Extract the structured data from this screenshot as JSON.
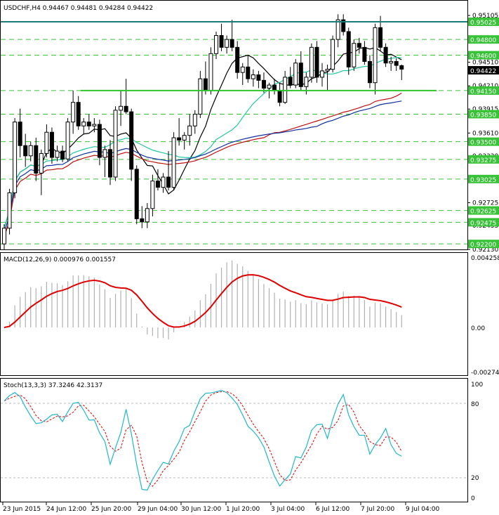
{
  "chart_header": {
    "symbol": "USDCHF,H4",
    "ohlc": "0.94467 0.94481 0.94284 0.94422"
  },
  "colors": {
    "background": "#ffffff",
    "candle": "#000000",
    "level_line": "#38c238",
    "horizontal_teal": "#1a7a7a",
    "support_green": "#2ec42e",
    "ma_black": "#000000",
    "ma_aqua": "#20c8a0",
    "ma_red": "#c01010",
    "ma_blue": "#1030a0",
    "macd_signal": "#e00000",
    "macd_hist": "#b0b0b0",
    "stoch_main": "#20b8c8",
    "stoch_signal": "#e00000"
  },
  "price_axis": {
    "ticks": [
      "0.95105",
      "0.94790",
      "0.94510",
      "0.94210",
      "0.93915",
      "0.93610",
      "0.93320",
      "0.93025",
      "0.92725",
      "0.92435",
      "0.92130"
    ],
    "current_price_tag": "0.94422"
  },
  "levels": {
    "values": [
      "0.95025",
      "0.94800",
      "0.94600",
      "0.94150",
      "0.93850",
      "0.93500",
      "0.93275",
      "0.93025",
      "0.92625",
      "0.92475",
      "0.92200"
    ],
    "teal_level": "0.95025",
    "support_level": "0.94150"
  },
  "macd": {
    "title": "MACD(12,26,9) 0.000976 0.001557",
    "axis": [
      "0.004258",
      "0.00",
      "-0.002745"
    ]
  },
  "stoch": {
    "title": "Stoch(13,3,3) 37.3246 42.3137",
    "axis": [
      "100",
      "80",
      "20",
      "0"
    ]
  },
  "time_axis": {
    "labels": [
      "23 Jun 2015",
      "24 Jun 12:00",
      "25 Jun 20:00",
      "29 Jun 04:00",
      "30 Jun 12:00",
      "1 Jul 20:00",
      "3 Jul 04:00",
      "6 Jul 12:00",
      "7 Jul 20:00",
      "9 Jul 04:00"
    ]
  },
  "chart_data": {
    "type": "candlestick",
    "title": "USDCHF,H4",
    "ylim": [
      0.9213,
      0.9523
    ],
    "candles": [
      {
        "t": "23 Jun 2015 00:00",
        "o": 0.922,
        "h": 0.9245,
        "l": 0.9213,
        "c": 0.924
      },
      {
        "t": "23 Jun 2015 04:00",
        "o": 0.924,
        "h": 0.929,
        "l": 0.9232,
        "c": 0.9285
      },
      {
        "t": "23 Jun 2015 08:00",
        "o": 0.9285,
        "h": 0.938,
        "l": 0.9278,
        "c": 0.9375
      },
      {
        "t": "23 Jun 2015 12:00",
        "o": 0.9375,
        "h": 0.9392,
        "l": 0.933,
        "c": 0.9345
      },
      {
        "t": "23 Jun 2015 16:00",
        "o": 0.9345,
        "h": 0.936,
        "l": 0.9318,
        "c": 0.9332
      },
      {
        "t": "23 Jun 2015 20:00",
        "o": 0.9332,
        "h": 0.935,
        "l": 0.9325,
        "c": 0.9345
      },
      {
        "t": "24 Jun 2015 00:00",
        "o": 0.9345,
        "h": 0.9355,
        "l": 0.93,
        "c": 0.931
      },
      {
        "t": "24 Jun 2015 04:00",
        "o": 0.931,
        "h": 0.934,
        "l": 0.9282,
        "c": 0.9335
      },
      {
        "t": "24 Jun 2015 08:00",
        "o": 0.9335,
        "h": 0.9372,
        "l": 0.933,
        "c": 0.9362
      },
      {
        "t": "24 Jun 2015 12:00",
        "o": 0.9362,
        "h": 0.9368,
        "l": 0.9322,
        "c": 0.933
      },
      {
        "t": "24 Jun 2015 16:00",
        "o": 0.933,
        "h": 0.9345,
        "l": 0.9325,
        "c": 0.9338
      },
      {
        "t": "24 Jun 2015 20:00",
        "o": 0.9338,
        "h": 0.9345,
        "l": 0.9324,
        "c": 0.9328
      },
      {
        "t": "25 Jun 2015 00:00",
        "o": 0.9328,
        "h": 0.938,
        "l": 0.9325,
        "c": 0.9375
      },
      {
        "t": "25 Jun 2015 04:00",
        "o": 0.9375,
        "h": 0.9415,
        "l": 0.936,
        "c": 0.94
      },
      {
        "t": "25 Jun 2015 08:00",
        "o": 0.94,
        "h": 0.9408,
        "l": 0.9365,
        "c": 0.937
      },
      {
        "t": "25 Jun 2015 12:00",
        "o": 0.937,
        "h": 0.938,
        "l": 0.936,
        "c": 0.9375
      },
      {
        "t": "25 Jun 2015 16:00",
        "o": 0.9375,
        "h": 0.9385,
        "l": 0.9365,
        "c": 0.937
      },
      {
        "t": "25 Jun 2015 20:00",
        "o": 0.937,
        "h": 0.938,
        "l": 0.9362,
        "c": 0.9372
      },
      {
        "t": "26 Jun 2015 00:00",
        "o": 0.9372,
        "h": 0.9378,
        "l": 0.932,
        "c": 0.933
      },
      {
        "t": "26 Jun 2015 04:00",
        "o": 0.933,
        "h": 0.9345,
        "l": 0.9305,
        "c": 0.934
      },
      {
        "t": "26 Jun 2015 08:00",
        "o": 0.934,
        "h": 0.9352,
        "l": 0.9295,
        "c": 0.9305
      },
      {
        "t": "26 Jun 2015 12:00",
        "o": 0.9305,
        "h": 0.9395,
        "l": 0.93,
        "c": 0.939
      },
      {
        "t": "26 Jun 2015 16:00",
        "o": 0.939,
        "h": 0.9415,
        "l": 0.937,
        "c": 0.9395
      },
      {
        "t": "26 Jun 2015 20:00",
        "o": 0.9395,
        "h": 0.943,
        "l": 0.9385,
        "c": 0.9388
      },
      {
        "t": "29 Jun 2015 00:00",
        "o": 0.9388,
        "h": 0.9392,
        "l": 0.93,
        "c": 0.9315
      },
      {
        "t": "29 Jun 2015 04:00",
        "o": 0.9315,
        "h": 0.932,
        "l": 0.9245,
        "c": 0.9252
      },
      {
        "t": "29 Jun 2015 08:00",
        "o": 0.9252,
        "h": 0.9268,
        "l": 0.924,
        "c": 0.9248
      },
      {
        "t": "29 Jun 2015 12:00",
        "o": 0.9248,
        "h": 0.9272,
        "l": 0.924,
        "c": 0.9265
      },
      {
        "t": "29 Jun 2015 16:00",
        "o": 0.9265,
        "h": 0.9308,
        "l": 0.9255,
        "c": 0.93
      },
      {
        "t": "29 Jun 2015 20:00",
        "o": 0.93,
        "h": 0.9315,
        "l": 0.9288,
        "c": 0.9292
      },
      {
        "t": "30 Jun 2015 00:00",
        "o": 0.9292,
        "h": 0.931,
        "l": 0.9285,
        "c": 0.9305
      },
      {
        "t": "30 Jun 2015 04:00",
        "o": 0.9305,
        "h": 0.9338,
        "l": 0.9288,
        "c": 0.9292
      },
      {
        "t": "30 Jun 2015 08:00",
        "o": 0.9292,
        "h": 0.9362,
        "l": 0.9288,
        "c": 0.9355
      },
      {
        "t": "30 Jun 2015 12:00",
        "o": 0.9355,
        "h": 0.938,
        "l": 0.9345,
        "c": 0.9352
      },
      {
        "t": "30 Jun 2015 16:00",
        "o": 0.9352,
        "h": 0.9362,
        "l": 0.934,
        "c": 0.9358
      },
      {
        "t": "30 Jun 2015 20:00",
        "o": 0.9358,
        "h": 0.9385,
        "l": 0.9345,
        "c": 0.937
      },
      {
        "t": "1 Jul 2015 00:00",
        "o": 0.937,
        "h": 0.939,
        "l": 0.936,
        "c": 0.9385
      },
      {
        "t": "1 Jul 2015 04:00",
        "o": 0.9385,
        "h": 0.944,
        "l": 0.938,
        "c": 0.943
      },
      {
        "t": "1 Jul 2015 08:00",
        "o": 0.943,
        "h": 0.9452,
        "l": 0.941,
        "c": 0.9415
      },
      {
        "t": "1 Jul 2015 12:00",
        "o": 0.9415,
        "h": 0.947,
        "l": 0.941,
        "c": 0.9462
      },
      {
        "t": "1 Jul 2015 16:00",
        "o": 0.9462,
        "h": 0.949,
        "l": 0.9455,
        "c": 0.9485
      },
      {
        "t": "1 Jul 2015 20:00",
        "o": 0.9485,
        "h": 0.95,
        "l": 0.9465,
        "c": 0.947
      },
      {
        "t": "2 Jul 2015 00:00",
        "o": 0.947,
        "h": 0.9485,
        "l": 0.9462,
        "c": 0.948
      },
      {
        "t": "2 Jul 2015 04:00",
        "o": 0.948,
        "h": 0.9505,
        "l": 0.9465,
        "c": 0.947
      },
      {
        "t": "2 Jul 2015 08:00",
        "o": 0.947,
        "h": 0.9478,
        "l": 0.943,
        "c": 0.9438
      },
      {
        "t": "2 Jul 2015 12:00",
        "o": 0.9438,
        "h": 0.945,
        "l": 0.9422,
        "c": 0.9445
      },
      {
        "t": "2 Jul 2015 16:00",
        "o": 0.9445,
        "h": 0.946,
        "l": 0.9425,
        "c": 0.943
      },
      {
        "t": "2 Jul 2015 20:00",
        "o": 0.943,
        "h": 0.9442,
        "l": 0.942,
        "c": 0.9435
      },
      {
        "t": "3 Jul 2015 00:00",
        "o": 0.9435,
        "h": 0.944,
        "l": 0.9418,
        "c": 0.9428
      },
      {
        "t": "3 Jul 2015 04:00",
        "o": 0.9428,
        "h": 0.9438,
        "l": 0.9412,
        "c": 0.9418
      },
      {
        "t": "3 Jul 2015 08:00",
        "o": 0.9418,
        "h": 0.9425,
        "l": 0.9405,
        "c": 0.9422
      },
      {
        "t": "3 Jul 2015 12:00",
        "o": 0.9422,
        "h": 0.943,
        "l": 0.941,
        "c": 0.9415
      },
      {
        "t": "3 Jul 2015 16:00",
        "o": 0.9415,
        "h": 0.9425,
        "l": 0.9395,
        "c": 0.94
      },
      {
        "t": "5 Jul 2015 20:00",
        "o": 0.94,
        "h": 0.944,
        "l": 0.9398,
        "c": 0.9432
      },
      {
        "t": "6 Jul 2015 00:00",
        "o": 0.9432,
        "h": 0.9445,
        "l": 0.9418,
        "c": 0.9422
      },
      {
        "t": "6 Jul 2015 04:00",
        "o": 0.9422,
        "h": 0.9455,
        "l": 0.9418,
        "c": 0.945
      },
      {
        "t": "6 Jul 2015 08:00",
        "o": 0.945,
        "h": 0.9465,
        "l": 0.9415,
        "c": 0.942
      },
      {
        "t": "6 Jul 2015 12:00",
        "o": 0.942,
        "h": 0.9438,
        "l": 0.941,
        "c": 0.9432
      },
      {
        "t": "6 Jul 2015 16:00",
        "o": 0.9432,
        "h": 0.9475,
        "l": 0.9425,
        "c": 0.947
      },
      {
        "t": "6 Jul 2015 20:00",
        "o": 0.947,
        "h": 0.9478,
        "l": 0.9425,
        "c": 0.9432
      },
      {
        "t": "7 Jul 2015 00:00",
        "o": 0.9432,
        "h": 0.945,
        "l": 0.942,
        "c": 0.944
      },
      {
        "t": "7 Jul 2015 04:00",
        "o": 0.944,
        "h": 0.9448,
        "l": 0.9415,
        "c": 0.9442
      },
      {
        "t": "7 Jul 2015 08:00",
        "o": 0.9442,
        "h": 0.9485,
        "l": 0.9438,
        "c": 0.948
      },
      {
        "t": "7 Jul 2015 12:00",
        "o": 0.948,
        "h": 0.9512,
        "l": 0.947,
        "c": 0.9505
      },
      {
        "t": "7 Jul 2015 16:00",
        "o": 0.9505,
        "h": 0.9512,
        "l": 0.9485,
        "c": 0.949
      },
      {
        "t": "7 Jul 2015 20:00",
        "o": 0.949,
        "h": 0.9495,
        "l": 0.9435,
        "c": 0.9445
      },
      {
        "t": "8 Jul 2015 00:00",
        "o": 0.9445,
        "h": 0.948,
        "l": 0.944,
        "c": 0.9475
      },
      {
        "t": "8 Jul 2015 04:00",
        "o": 0.9475,
        "h": 0.9482,
        "l": 0.9462,
        "c": 0.947
      },
      {
        "t": "8 Jul 2015 08:00",
        "o": 0.947,
        "h": 0.9478,
        "l": 0.9448,
        "c": 0.9452
      },
      {
        "t": "8 Jul 2015 12:00",
        "o": 0.9452,
        "h": 0.946,
        "l": 0.9418,
        "c": 0.9425
      },
      {
        "t": "8 Jul 2015 16:00",
        "o": 0.9425,
        "h": 0.95,
        "l": 0.941,
        "c": 0.9495
      },
      {
        "t": "8 Jul 2015 20:00",
        "o": 0.9495,
        "h": 0.951,
        "l": 0.9465,
        "c": 0.947
      },
      {
        "t": "9 Jul 2015 00:00",
        "o": 0.947,
        "h": 0.9475,
        "l": 0.9445,
        "c": 0.945
      },
      {
        "t": "9 Jul 2015 04:00",
        "o": 0.945,
        "h": 0.9458,
        "l": 0.944,
        "c": 0.9452
      },
      {
        "t": "9 Jul 2015 08:00",
        "o": 0.9452,
        "h": 0.9456,
        "l": 0.944,
        "c": 0.9447
      },
      {
        "t": "9 Jul 2015 12:00",
        "o": 0.94467,
        "h": 0.94481,
        "l": 0.94284,
        "c": 0.94422
      }
    ],
    "macd": {
      "signal_ylim": [
        -0.002745,
        0.004258
      ]
    },
    "stoch": {
      "ylim": [
        0,
        100
      ],
      "levels": [
        80,
        20
      ]
    }
  }
}
